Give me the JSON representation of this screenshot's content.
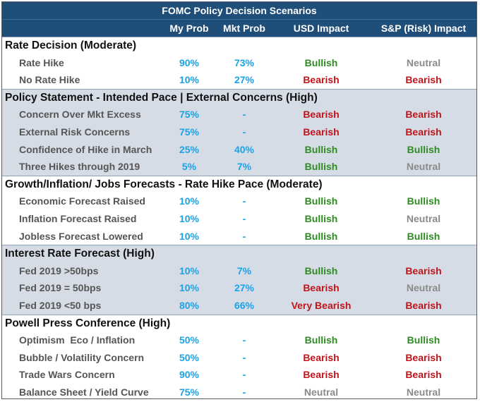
{
  "title": "FOMC Policy Decision Scenarios",
  "headers": {
    "my_prob": "My Prob",
    "mkt_prob": "Mkt Prob",
    "usd": "USD Impact",
    "sp": "S&P (Risk) Impact"
  },
  "sections": [
    {
      "title": "Rate Decision (Moderate)",
      "rows": [
        {
          "label": "Rate Hike",
          "my": "90%",
          "mkt": "73%",
          "usd": "Bullish",
          "sp": "Neutral"
        },
        {
          "label": "No Rate Hike",
          "my": "10%",
          "mkt": "27%",
          "usd": "Bearish",
          "sp": "Bearish"
        }
      ]
    },
    {
      "title": "Policy Statement - Intended Pace | External Concerns (High)",
      "rows": [
        {
          "label": "Concern Over Mkt Excess",
          "my": "75%",
          "mkt": "-",
          "usd": "Bearish",
          "sp": "Bearish"
        },
        {
          "label": "External Risk Concerns",
          "my": "75%",
          "mkt": "-",
          "usd": "Bearish",
          "sp": "Bearish"
        },
        {
          "label": "Confidence of Hike in March",
          "my": "25%",
          "mkt": "40%",
          "usd": "Bullish",
          "sp": "Bullish"
        },
        {
          "label": "Three Hikes through 2019",
          "my": "5%",
          "mkt": "7%",
          "usd": "Bullish",
          "sp": "Neutral"
        }
      ]
    },
    {
      "title": "Growth/Inflation/ Jobs Forecasts - Rate Hike Pace (Moderate)",
      "rows": [
        {
          "label": "Economic Forecast Raised",
          "my": "10%",
          "mkt": "-",
          "usd": "Bullish",
          "sp": "Bullish"
        },
        {
          "label": "Inflation Forecast Raised",
          "my": "10%",
          "mkt": "-",
          "usd": "Bullish",
          "sp": "Neutral"
        },
        {
          "label": "Jobless Forecast Lowered",
          "my": "10%",
          "mkt": "-",
          "usd": "Bullish",
          "sp": "Bullish"
        }
      ]
    },
    {
      "title": "Interest Rate Forecast (High)",
      "rows": [
        {
          "label": "Fed 2019 >50bps",
          "my": "10%",
          "mkt": "7%",
          "usd": "Bullish",
          "sp": "Bearish"
        },
        {
          "label": "Fed 2019 = 50bps",
          "my": "10%",
          "mkt": "27%",
          "usd": "Bearish",
          "sp": "Neutral"
        },
        {
          "label": "Fed 2019 <50 bps",
          "my": "80%",
          "mkt": "66%",
          "usd": "Very Bearish",
          "sp": "Bearish"
        }
      ]
    },
    {
      "title": "Powell Press Conference (High)",
      "rows": [
        {
          "label": "Optimism  Eco / Inflation",
          "my": "50%",
          "mkt": "-",
          "usd": "Bullish",
          "sp": "Bullish"
        },
        {
          "label": "Bubble / Volatility Concern",
          "my": "50%",
          "mkt": "-",
          "usd": "Bearish",
          "sp": "Bearish"
        },
        {
          "label": "Trade Wars Concern",
          "my": "90%",
          "mkt": "-",
          "usd": "Bearish",
          "sp": "Bearish"
        },
        {
          "label": "Balance Sheet / Yield Curve",
          "my": "75%",
          "mkt": "-",
          "usd": "Neutral",
          "sp": "Neutral"
        }
      ]
    }
  ],
  "colors": {
    "header_bg": "#1f4e79",
    "band_bg": "#d6dce5",
    "prob": "#1aa3e8",
    "bullish": "#2e8b22",
    "bearish": "#c0141b",
    "neutral": "#8a8a8a"
  }
}
